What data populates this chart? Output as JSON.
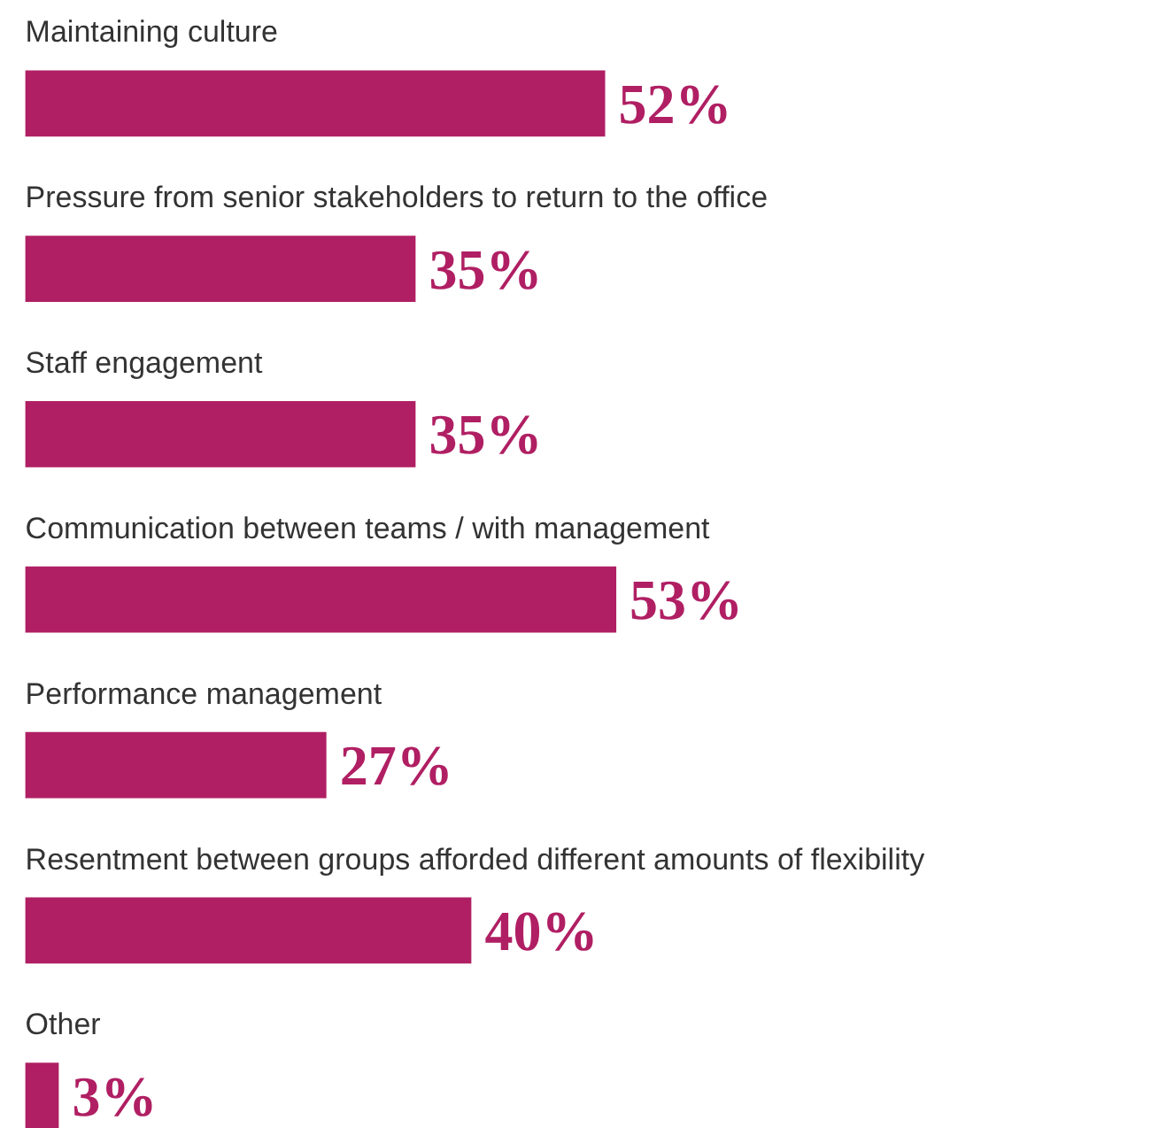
{
  "chart_data": {
    "type": "bar",
    "orientation": "horizontal",
    "categories": [
      "Maintaining culture",
      "Pressure from senior stakeholders to return to the office",
      "Staff engagement",
      "Communication between teams / with management",
      "Performance management",
      "Resentment between groups afforded different amounts of flexibility",
      "Other"
    ],
    "values": [
      52,
      35,
      35,
      53,
      27,
      40,
      3
    ],
    "value_labels": [
      "52%",
      "35%",
      "35%",
      "53%",
      "27%",
      "40%",
      "3%"
    ],
    "color": "#b01f63",
    "grid": false
  }
}
